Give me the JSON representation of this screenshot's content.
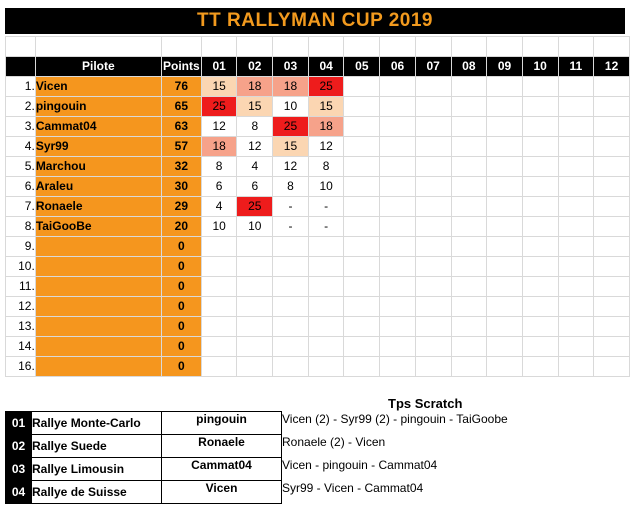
{
  "title": "TT RALLYMAN CUP 2019",
  "header": {
    "pilot": "Pilote",
    "points": "Points",
    "rounds": [
      "01",
      "02",
      "03",
      "04",
      "05",
      "06",
      "07",
      "08",
      "09",
      "10",
      "11",
      "12"
    ]
  },
  "rows": [
    {
      "rank": "1.",
      "name": "Vicen",
      "points": "76",
      "scores": [
        "15",
        "18",
        "18",
        "25",
        "",
        "",
        "",
        "",
        "",
        "",
        "",
        ""
      ]
    },
    {
      "rank": "2.",
      "name": "pingouin",
      "points": "65",
      "scores": [
        "25",
        "15",
        "10",
        "15",
        "",
        "",
        "",
        "",
        "",
        "",
        "",
        ""
      ]
    },
    {
      "rank": "3.",
      "name": "Cammat04",
      "points": "63",
      "scores": [
        "12",
        "8",
        "25",
        "18",
        "",
        "",
        "",
        "",
        "",
        "",
        "",
        ""
      ]
    },
    {
      "rank": "4.",
      "name": "Syr99",
      "points": "57",
      "scores": [
        "18",
        "12",
        "15",
        "12",
        "",
        "",
        "",
        "",
        "",
        "",
        "",
        ""
      ]
    },
    {
      "rank": "5.",
      "name": "Marchou",
      "points": "32",
      "scores": [
        "8",
        "4",
        "12",
        "8",
        "",
        "",
        "",
        "",
        "",
        "",
        "",
        ""
      ]
    },
    {
      "rank": "6.",
      "name": "Araleu",
      "points": "30",
      "scores": [
        "6",
        "6",
        "8",
        "10",
        "",
        "",
        "",
        "",
        "",
        "",
        "",
        ""
      ]
    },
    {
      "rank": "7.",
      "name": "Ronaele",
      "points": "29",
      "scores": [
        "4",
        "25",
        "-",
        "-",
        "",
        "",
        "",
        "",
        "",
        "",
        "",
        ""
      ]
    },
    {
      "rank": "8.",
      "name": "TaiGooBe",
      "points": "20",
      "scores": [
        "10",
        "10",
        "-",
        "-",
        "",
        "",
        "",
        "",
        "",
        "",
        "",
        ""
      ]
    },
    {
      "rank": "9.",
      "name": "",
      "points": "0",
      "scores": [
        "",
        "",
        "",
        "",
        "",
        "",
        "",
        "",
        "",
        "",
        "",
        ""
      ]
    },
    {
      "rank": "10.",
      "name": "",
      "points": "0",
      "scores": [
        "",
        "",
        "",
        "",
        "",
        "",
        "",
        "",
        "",
        "",
        "",
        ""
      ]
    },
    {
      "rank": "11.",
      "name": "",
      "points": "0",
      "scores": [
        "",
        "",
        "",
        "",
        "",
        "",
        "",
        "",
        "",
        "",
        "",
        ""
      ]
    },
    {
      "rank": "12.",
      "name": "",
      "points": "0",
      "scores": [
        "",
        "",
        "",
        "",
        "",
        "",
        "",
        "",
        "",
        "",
        "",
        ""
      ]
    },
    {
      "rank": "13.",
      "name": "",
      "points": "0",
      "scores": [
        "",
        "",
        "",
        "",
        "",
        "",
        "",
        "",
        "",
        "",
        "",
        ""
      ]
    },
    {
      "rank": "14.",
      "name": "",
      "points": "0",
      "scores": [
        "",
        "",
        "",
        "",
        "",
        "",
        "",
        "",
        "",
        "",
        "",
        ""
      ]
    },
    {
      "rank": "16.",
      "name": "",
      "points": "0",
      "scores": [
        "",
        "",
        "",
        "",
        "",
        "",
        "",
        "",
        "",
        "",
        "",
        ""
      ]
    }
  ],
  "scratch_title": "Tps Scratch",
  "events": [
    {
      "num": "01",
      "name": "Rallye Monte-Carlo",
      "winner": "pingouin",
      "scratch": "Vicen (2) - Syr99 (2) - pingouin - TaiGoobe"
    },
    {
      "num": "02",
      "name": "Rallye Suede",
      "winner": "Ronaele",
      "scratch": "Ronaele (2) - Vicen"
    },
    {
      "num": "03",
      "name": "Rallye Limousin",
      "winner": "Cammat04",
      "scratch": "Vicen - pingouin - Cammat04"
    },
    {
      "num": "04",
      "name": "Rallye de Suisse",
      "winner": "Vicen",
      "scratch": "Syr99 - Vicen - Cammat04"
    }
  ],
  "colors": {
    "accent": "#f5961e",
    "title_text": "#f29a1e",
    "score_25": "#ee1c1c",
    "score_18": "#f6a28a",
    "score_15": "#fbd6b2"
  }
}
